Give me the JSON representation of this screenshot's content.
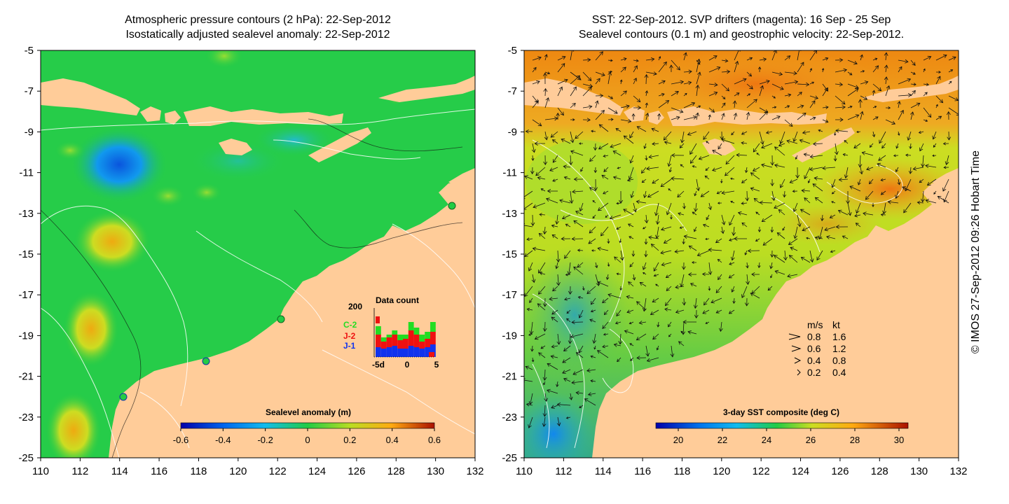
{
  "left_panel": {
    "title_line1": "Atmospheric pressure contours (2 hPa): 22-Sep-2012",
    "title_line2": "Isostatically adjusted sealevel anomaly: 22-Sep-2012",
    "y_ticks": [
      "-5",
      "-7",
      "-9",
      "-11",
      "-13",
      "-15",
      "-17",
      "-19",
      "-21",
      "-23",
      "-25"
    ],
    "x_ticks": [
      "110",
      "112",
      "114",
      "116",
      "118",
      "120",
      "122",
      "124",
      "126",
      "128",
      "130",
      "132"
    ],
    "colorbar": {
      "label": "Sealevel anomaly (m)",
      "ticks": [
        "-0.6",
        "-0.4",
        "-0.2",
        "0",
        "0.2",
        "0.4",
        "0.6"
      ]
    },
    "data_count": {
      "title": "Data count",
      "ymax_label": "200",
      "x_labels": [
        "-5d",
        "0",
        "5"
      ],
      "legend": [
        {
          "label": "C-2",
          "color": "#22dd22"
        },
        {
          "label": "J-2",
          "color": "#ee1111"
        },
        {
          "label": "J-1",
          "color": "#1133ee"
        }
      ]
    }
  },
  "right_panel": {
    "title_line1": "SST: 22-Sep-2012. SVP drifters (magenta): 16 Sep - 25 Sep",
    "title_line2": "Sealevel contours (0.1 m) and geostrophic velocity: 22-Sep-2012.",
    "y_ticks": [
      "-5",
      "-7",
      "-9",
      "-11",
      "-13",
      "-15",
      "-17",
      "-19",
      "-21",
      "-23",
      "-25"
    ],
    "x_ticks": [
      "110",
      "112",
      "114",
      "116",
      "118",
      "120",
      "122",
      "124",
      "126",
      "128",
      "130",
      "132"
    ],
    "colorbar": {
      "label": "3-day SST composite (deg C)",
      "ticks": [
        "20",
        "22",
        "24",
        "26",
        "28",
        "30"
      ]
    },
    "speed_legend": {
      "header_ms": "m/s",
      "header_kt": "kt",
      "rows": [
        {
          "ms": "0.8",
          "kt": "1.6"
        },
        {
          "ms": "0.6",
          "kt": "1.2"
        },
        {
          "ms": "0.4",
          "kt": "0.8"
        },
        {
          "ms": "0.2",
          "kt": "0.4"
        }
      ]
    }
  },
  "copyright": "© IMOS 27-Sep-2012 09:26 Hobart Time",
  "colors": {
    "land": "#ffcc99",
    "sea_green": "#22cc44",
    "sst_warm": "#ee8811"
  }
}
